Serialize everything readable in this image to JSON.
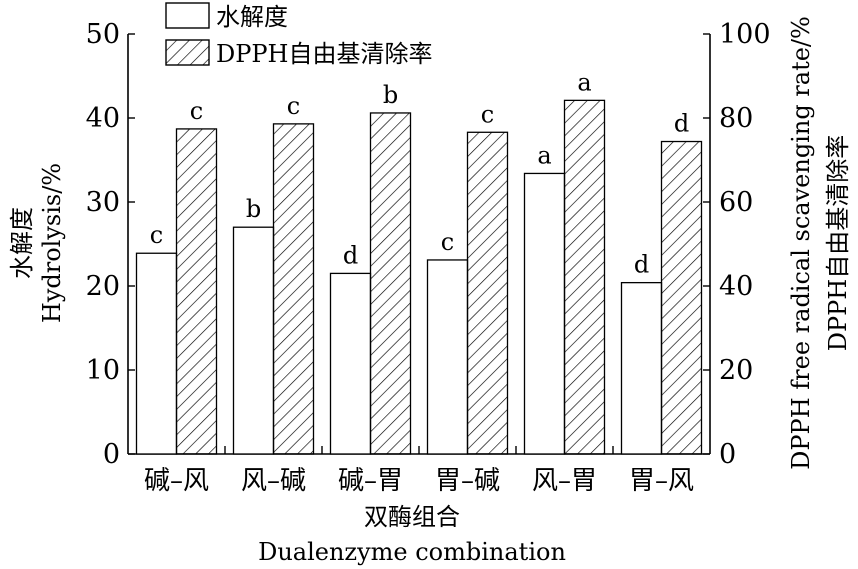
{
  "chart_data": {
    "type": "bar",
    "categories": [
      "碱–风",
      "风–碱",
      "碱–胃",
      "胃–碱",
      "风–胃",
      "胃–风"
    ],
    "series": [
      {
        "name": "水解度",
        "axis": "left",
        "pattern": "none",
        "values": [
          23.9,
          27.0,
          21.5,
          23.1,
          33.4,
          20.4
        ],
        "significance": [
          "c",
          "b",
          "d",
          "c",
          "a",
          "d"
        ]
      },
      {
        "name": "DPPH自由基清除率",
        "axis": "right",
        "pattern": "hatched",
        "values": [
          77.4,
          78.6,
          81.2,
          76.6,
          84.2,
          74.4
        ],
        "significance": [
          "c",
          "c",
          "b",
          "c",
          "a",
          "d"
        ]
      }
    ],
    "xlabel_cn": "双酶组合",
    "xlabel_en": "Dualenzyme combination",
    "ylabel_left_cn": "水解度",
    "ylabel_left_en": "Hydrolysis/%",
    "ylabel_right_cn": "DPPH自由基清除率",
    "ylabel_right_en": "DPPH free radical scavenging rate/%",
    "ylim_left": [
      0,
      50
    ],
    "ylim_right": [
      0,
      100
    ],
    "yticks_left": [
      "0",
      "10",
      "20",
      "30",
      "40",
      "50"
    ],
    "yticks_right": [
      "0",
      "20",
      "40",
      "60",
      "80",
      "100"
    ],
    "legend_position": "top-left",
    "grid": false,
    "colors": {
      "bar_fill": "#ffffff",
      "stroke": "#000000",
      "hatch": "#000000"
    }
  }
}
